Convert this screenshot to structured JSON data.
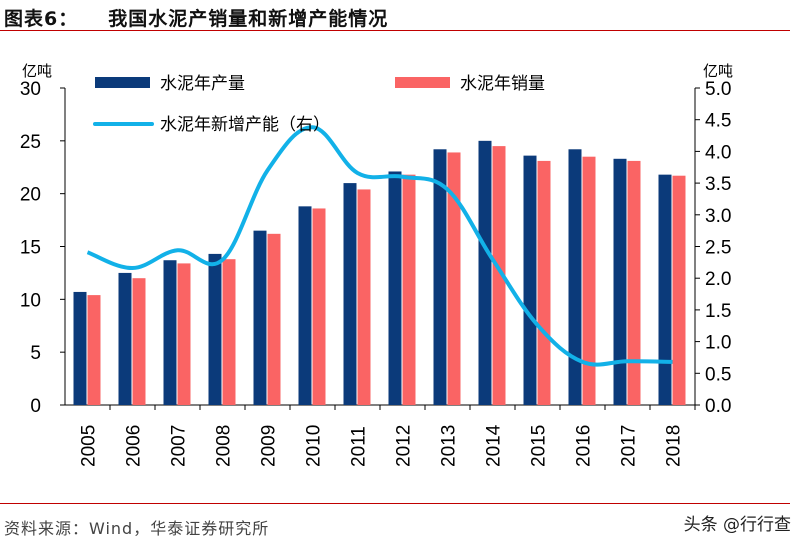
{
  "title": {
    "prefix": "图表6：",
    "text": "我国水泥产销量和新增产能情况"
  },
  "source": "资料来源：Wind，华泰证券研究所",
  "brand": "头条 @行行查",
  "chart_data": {
    "type": "bar",
    "categories": [
      "2005",
      "2006",
      "2007",
      "2008",
      "2009",
      "2010",
      "2011",
      "2012",
      "2013",
      "2014",
      "2015",
      "2016",
      "2017",
      "2018"
    ],
    "series": [
      {
        "name": "水泥年产量",
        "type": "bar",
        "axis": "left",
        "color": "#0b3a7a",
        "values": [
          10.7,
          12.5,
          13.7,
          14.3,
          16.5,
          18.8,
          21.0,
          22.1,
          24.2,
          25.0,
          23.6,
          24.2,
          23.3,
          21.8
        ]
      },
      {
        "name": "水泥年销量",
        "type": "bar",
        "axis": "left",
        "color": "#fa6464",
        "values": [
          10.4,
          12.0,
          13.4,
          13.8,
          16.2,
          18.6,
          20.4,
          21.8,
          23.9,
          24.5,
          23.1,
          23.5,
          23.1,
          21.7
        ]
      },
      {
        "name": "水泥年新增产能（右）",
        "type": "line",
        "axis": "right",
        "color": "#12b1e8",
        "values": [
          2.41,
          2.16,
          2.44,
          2.29,
          3.7,
          4.38,
          3.66,
          3.6,
          3.4,
          2.3,
          1.26,
          0.68,
          0.69,
          0.68
        ]
      }
    ],
    "left_axis": {
      "unit": "亿吨",
      "ylim": [
        0,
        30
      ],
      "ticks": [
        "0",
        "5",
        "10",
        "15",
        "20",
        "25",
        "30"
      ]
    },
    "right_axis": {
      "unit": "亿吨",
      "ylim": [
        0,
        5
      ],
      "ticks": [
        "0.0",
        "0.5",
        "1.0",
        "1.5",
        "2.0",
        "2.5",
        "3.0",
        "3.5",
        "4.0",
        "4.5",
        "5.0"
      ]
    },
    "legend": "top",
    "grid": false
  }
}
